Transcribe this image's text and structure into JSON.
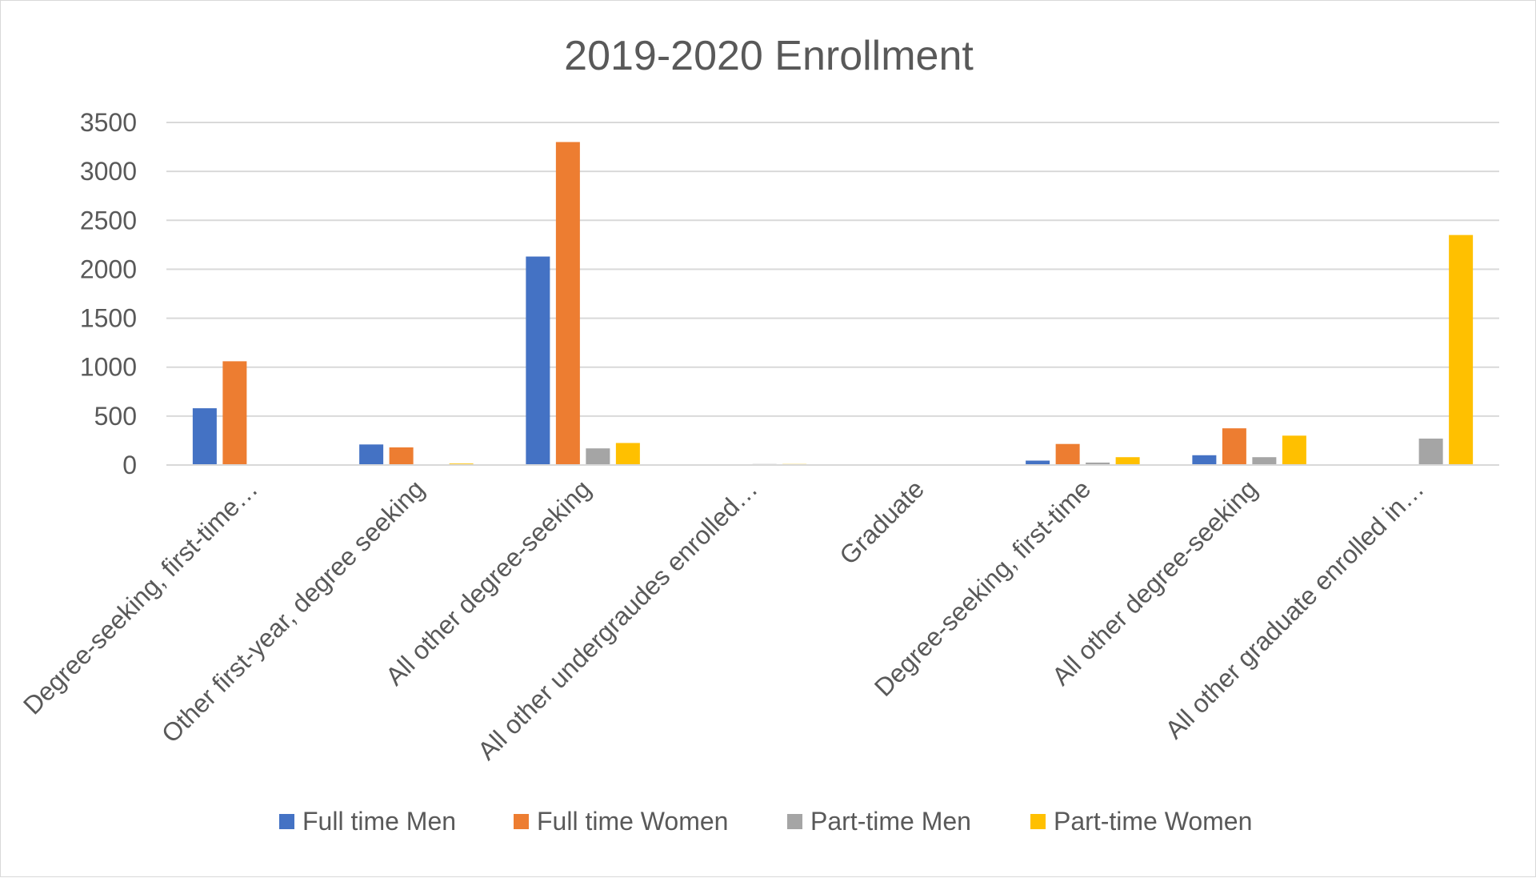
{
  "chart_data": {
    "type": "bar",
    "title": "2019-2020 Enrollment",
    "xlabel": "",
    "ylabel": "",
    "ylim": [
      0,
      3500
    ],
    "yticks": [
      0,
      500,
      1000,
      1500,
      2000,
      2500,
      3000,
      3500
    ],
    "grid": true,
    "legend_position": "bottom",
    "categories": [
      "Degree-seeking, first-time…",
      "Other first-year, degree seeking",
      "All other degree-seeking",
      "All other undergraudes enrolled…",
      "Graduate",
      "Degree-seeking, first-time",
      "All other degree-seeking",
      "All other graduate enrolled in…"
    ],
    "series": [
      {
        "name": "Full time Men",
        "color": "#4472c4",
        "values": [
          580,
          210,
          2130,
          0,
          0,
          45,
          100,
          0
        ]
      },
      {
        "name": "Full time Women",
        "color": "#ed7d31",
        "values": [
          1060,
          180,
          3300,
          0,
          0,
          215,
          375,
          0
        ]
      },
      {
        "name": "Part-time Men",
        "color": "#a5a5a5",
        "values": [
          0,
          0,
          170,
          10,
          0,
          25,
          80,
          270
        ]
      },
      {
        "name": "Part-time Women",
        "color": "#ffc000",
        "values": [
          0,
          15,
          225,
          10,
          0,
          80,
          300,
          2350
        ]
      }
    ]
  }
}
